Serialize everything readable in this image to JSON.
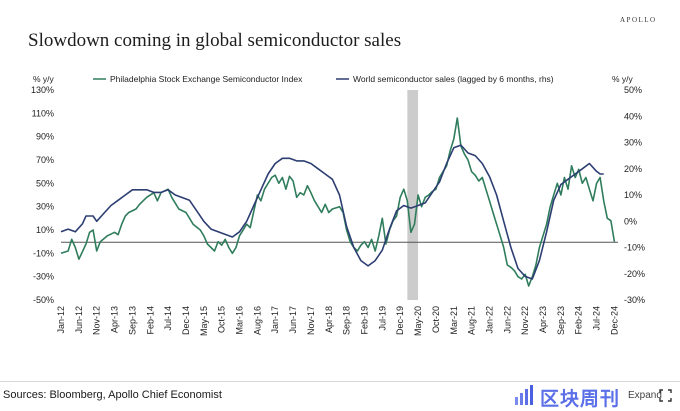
{
  "brand": "APOLLO",
  "chart_data": {
    "type": "line",
    "title": "Slowdown coming in global semiconductor sales",
    "left_axis_label": "% y/y",
    "right_axis_label": "% y/y",
    "left_ylim": [
      -50,
      130
    ],
    "right_ylim": [
      -30,
      50
    ],
    "left_ticks": [
      "130%",
      "110%",
      "90%",
      "70%",
      "50%",
      "30%",
      "10%",
      "-10%",
      "-30%",
      "-50%"
    ],
    "right_ticks": [
      "50%",
      "40%",
      "30%",
      "20%",
      "10%",
      "0%",
      "-10%",
      "-20%",
      "-30%"
    ],
    "x_ticks": [
      "Jan-12",
      "Jun-12",
      "Nov-12",
      "Apr-13",
      "Sep-13",
      "Feb-14",
      "Jul-14",
      "Dec-14",
      "May-15",
      "Oct-15",
      "Mar-16",
      "Aug-16",
      "Jan-17",
      "Jun-17",
      "Nov-17",
      "Apr-18",
      "Sep-18",
      "Feb-19",
      "Jul-19",
      "Dec-19",
      "May-20",
      "Oct-20",
      "Mar-21",
      "Aug-21",
      "Jan-22",
      "Jun-22",
      "Nov-22",
      "Apr-23",
      "Sep-23",
      "Feb-24",
      "Jul-24",
      "Dec-24"
    ],
    "x_start": "Jan-12",
    "x_end": "Jan-25",
    "shaded_period": {
      "start": "Feb-20",
      "end": "May-20"
    },
    "reference_line": {
      "axis": "right",
      "value": -8
    },
    "series": [
      {
        "name": "Philadelphia Stock Exchange Semiconductor Index",
        "axis": "left",
        "color": "#2f7d5c",
        "points": [
          [
            "Jan-12",
            -10
          ],
          [
            "Mar-12",
            -8
          ],
          [
            "Apr-12",
            2
          ],
          [
            "May-12",
            -5
          ],
          [
            "Jun-12",
            -15
          ],
          [
            "Aug-12",
            -2
          ],
          [
            "Sep-12",
            8
          ],
          [
            "Oct-12",
            10
          ],
          [
            "Nov-12",
            -8
          ],
          [
            "Dec-12",
            0
          ],
          [
            "Feb-13",
            5
          ],
          [
            "Apr-13",
            8
          ],
          [
            "May-13",
            6
          ],
          [
            "Jun-13",
            15
          ],
          [
            "Jul-13",
            22
          ],
          [
            "Aug-13",
            25
          ],
          [
            "Oct-13",
            28
          ],
          [
            "Nov-13",
            32
          ],
          [
            "Jan-14",
            38
          ],
          [
            "Mar-14",
            42
          ],
          [
            "Apr-14",
            35
          ],
          [
            "May-14",
            42
          ],
          [
            "Jul-14",
            45
          ],
          [
            "Aug-14",
            38
          ],
          [
            "Sep-14",
            33
          ],
          [
            "Oct-14",
            28
          ],
          [
            "Dec-14",
            25
          ],
          [
            "Feb-15",
            15
          ],
          [
            "Apr-15",
            10
          ],
          [
            "May-15",
            5
          ],
          [
            "Jun-15",
            -2
          ],
          [
            "Jul-15",
            -5
          ],
          [
            "Aug-15",
            -8
          ],
          [
            "Sep-15",
            0
          ],
          [
            "Oct-15",
            -3
          ],
          [
            "Nov-15",
            2
          ],
          [
            "Dec-15",
            -5
          ],
          [
            "Jan-16",
            -10
          ],
          [
            "Feb-16",
            -5
          ],
          [
            "Mar-16",
            5
          ],
          [
            "May-16",
            15
          ],
          [
            "Jun-16",
            12
          ],
          [
            "Aug-16",
            40
          ],
          [
            "Sep-16",
            35
          ],
          [
            "Oct-16",
            45
          ],
          [
            "Dec-16",
            55
          ],
          [
            "Jan-17",
            57
          ],
          [
            "Feb-17",
            50
          ],
          [
            "Mar-17",
            55
          ],
          [
            "Apr-17",
            45
          ],
          [
            "May-17",
            56
          ],
          [
            "Jun-17",
            52
          ],
          [
            "Jul-17",
            38
          ],
          [
            "Aug-17",
            42
          ],
          [
            "Sep-17",
            40
          ],
          [
            "Oct-17",
            48
          ],
          [
            "Nov-17",
            42
          ],
          [
            "Dec-17",
            35
          ],
          [
            "Jan-18",
            30
          ],
          [
            "Feb-18",
            25
          ],
          [
            "Mar-18",
            32
          ],
          [
            "Apr-18",
            25
          ],
          [
            "May-18",
            28
          ],
          [
            "Jul-18",
            30
          ],
          [
            "Aug-18",
            25
          ],
          [
            "Sep-18",
            10
          ],
          [
            "Oct-18",
            0
          ],
          [
            "Nov-18",
            -5
          ],
          [
            "Dec-18",
            -8
          ],
          [
            "Jan-19",
            -3
          ],
          [
            "Feb-19",
            0
          ],
          [
            "Mar-19",
            -5
          ],
          [
            "Apr-19",
            2
          ],
          [
            "May-19",
            -8
          ],
          [
            "Jun-19",
            5
          ],
          [
            "Jul-19",
            20
          ],
          [
            "Aug-19",
            -2
          ],
          [
            "Sep-19",
            10
          ],
          [
            "Oct-19",
            18
          ],
          [
            "Nov-19",
            22
          ],
          [
            "Dec-19",
            38
          ],
          [
            "Jan-20",
            45
          ],
          [
            "Feb-20",
            35
          ],
          [
            "Mar-20",
            8
          ],
          [
            "Apr-20",
            15
          ],
          [
            "May-20",
            40
          ],
          [
            "Jun-20",
            30
          ],
          [
            "Jul-20",
            38
          ],
          [
            "Aug-20",
            40
          ],
          [
            "Sep-20",
            43
          ],
          [
            "Oct-20",
            45
          ],
          [
            "Nov-20",
            55
          ],
          [
            "Dec-20",
            60
          ],
          [
            "Jan-21",
            65
          ],
          [
            "Feb-21",
            78
          ],
          [
            "Mar-21",
            88
          ],
          [
            "Apr-21",
            106
          ],
          [
            "May-21",
            82
          ],
          [
            "Jun-21",
            75
          ],
          [
            "Jul-21",
            70
          ],
          [
            "Aug-21",
            60
          ],
          [
            "Sep-21",
            57
          ],
          [
            "Oct-21",
            52
          ],
          [
            "Nov-21",
            55
          ],
          [
            "Dec-21",
            45
          ],
          [
            "Jan-22",
            35
          ],
          [
            "Feb-22",
            25
          ],
          [
            "Mar-22",
            15
          ],
          [
            "Apr-22",
            5
          ],
          [
            "May-22",
            -5
          ],
          [
            "Jun-22",
            -20
          ],
          [
            "Jul-22",
            -22
          ],
          [
            "Aug-22",
            -25
          ],
          [
            "Sep-22",
            -30
          ],
          [
            "Oct-22",
            -32
          ],
          [
            "Nov-22",
            -28
          ],
          [
            "Dec-22",
            -38
          ],
          [
            "Jan-23",
            -30
          ],
          [
            "Feb-23",
            -20
          ],
          [
            "Mar-23",
            -5
          ],
          [
            "Apr-23",
            5
          ],
          [
            "May-23",
            15
          ],
          [
            "Jun-23",
            30
          ],
          [
            "Jul-23",
            40
          ],
          [
            "Aug-23",
            50
          ],
          [
            "Sep-23",
            40
          ],
          [
            "Oct-23",
            55
          ],
          [
            "Nov-23",
            45
          ],
          [
            "Dec-23",
            65
          ],
          [
            "Jan-24",
            55
          ],
          [
            "Feb-24",
            62
          ],
          [
            "Mar-24",
            50
          ],
          [
            "Apr-24",
            55
          ],
          [
            "May-24",
            45
          ],
          [
            "Jun-24",
            35
          ],
          [
            "Jul-24",
            50
          ],
          [
            "Aug-24",
            55
          ],
          [
            "Sep-24",
            35
          ],
          [
            "Oct-24",
            20
          ],
          [
            "Nov-24",
            18
          ],
          [
            "Dec-24",
            0
          ]
        ]
      },
      {
        "name": "World semiconductor sales (lagged by 6 months, rhs)",
        "axis": "right",
        "color": "#2d3e72",
        "points": [
          [
            "Jan-12",
            -4
          ],
          [
            "Mar-12",
            -3
          ],
          [
            "May-12",
            -4
          ],
          [
            "Jul-12",
            -1
          ],
          [
            "Aug-12",
            2
          ],
          [
            "Oct-12",
            2
          ],
          [
            "Nov-12",
            0
          ],
          [
            "Jan-13",
            3
          ],
          [
            "Mar-13",
            6
          ],
          [
            "May-13",
            8
          ],
          [
            "Jul-13",
            10
          ],
          [
            "Sep-13",
            12
          ],
          [
            "Nov-13",
            12
          ],
          [
            "Jan-14",
            12
          ],
          [
            "Mar-14",
            11
          ],
          [
            "May-14",
            11
          ],
          [
            "Jul-14",
            12
          ],
          [
            "Sep-14",
            10
          ],
          [
            "Nov-14",
            9
          ],
          [
            "Jan-15",
            8
          ],
          [
            "Mar-15",
            4
          ],
          [
            "May-15",
            0
          ],
          [
            "Jul-15",
            -3
          ],
          [
            "Sep-15",
            -4
          ],
          [
            "Nov-15",
            -5
          ],
          [
            "Jan-16",
            -6
          ],
          [
            "Mar-16",
            -4
          ],
          [
            "May-16",
            0
          ],
          [
            "Jul-16",
            6
          ],
          [
            "Sep-16",
            12
          ],
          [
            "Nov-16",
            18
          ],
          [
            "Jan-17",
            22
          ],
          [
            "Mar-17",
            24
          ],
          [
            "May-17",
            24
          ],
          [
            "Jul-17",
            23
          ],
          [
            "Sep-17",
            23
          ],
          [
            "Nov-17",
            22
          ],
          [
            "Jan-18",
            20
          ],
          [
            "Mar-18",
            18
          ],
          [
            "May-18",
            16
          ],
          [
            "Jul-18",
            10
          ],
          [
            "Sep-18",
            -2
          ],
          [
            "Nov-18",
            -10
          ],
          [
            "Jan-19",
            -15
          ],
          [
            "Mar-19",
            -17
          ],
          [
            "May-19",
            -15
          ],
          [
            "Jul-19",
            -11
          ],
          [
            "Sep-19",
            -3
          ],
          [
            "Nov-19",
            4
          ],
          [
            "Jan-20",
            6
          ],
          [
            "Mar-20",
            5
          ],
          [
            "May-20",
            6
          ],
          [
            "Jul-20",
            7
          ],
          [
            "Sep-20",
            11
          ],
          [
            "Nov-20",
            15
          ],
          [
            "Jan-21",
            22
          ],
          [
            "Mar-21",
            28
          ],
          [
            "May-21",
            29
          ],
          [
            "Jul-21",
            26
          ],
          [
            "Sep-21",
            25
          ],
          [
            "Nov-21",
            22
          ],
          [
            "Jan-22",
            17
          ],
          [
            "Mar-22",
            10
          ],
          [
            "May-22",
            0
          ],
          [
            "Jul-22",
            -10
          ],
          [
            "Sep-22",
            -18
          ],
          [
            "Nov-22",
            -21
          ],
          [
            "Jan-23",
            -22
          ],
          [
            "Mar-23",
            -15
          ],
          [
            "May-23",
            -4
          ],
          [
            "Jul-23",
            8
          ],
          [
            "Sep-23",
            14
          ],
          [
            "Nov-23",
            16
          ],
          [
            "Jan-24",
            18
          ],
          [
            "Mar-24",
            20
          ],
          [
            "May-24",
            22
          ],
          [
            "Jul-24",
            19
          ],
          [
            "Aug-24",
            18
          ],
          [
            "Sep-24",
            18
          ]
        ]
      }
    ]
  },
  "footer": {
    "source": "Sources: Bloomberg, Apollo Chief Economist",
    "watermark": "区块周刊",
    "expand_label": "Expand"
  }
}
